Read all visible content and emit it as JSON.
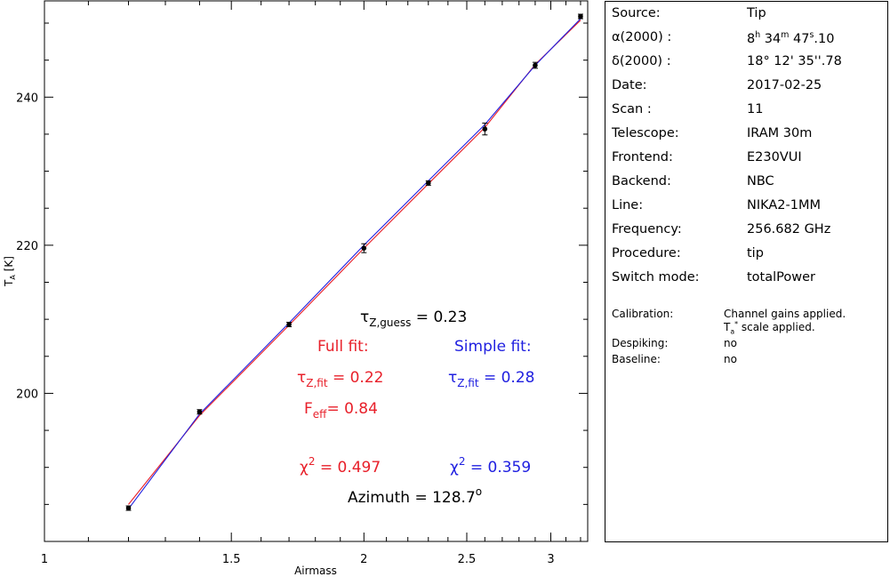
{
  "chart_data": {
    "type": "scatter",
    "xlabel": "Airmass",
    "ylabel": "T_A [K]",
    "x_scale": "log",
    "xlim": [
      1,
      3.25
    ],
    "ylim": [
      180,
      253
    ],
    "x_ticks": [
      1,
      1.5,
      2,
      2.5,
      3
    ],
    "y_ticks": [
      200,
      220,
      240
    ],
    "points": {
      "x": [
        1.2,
        1.4,
        1.7,
        2.0,
        2.3,
        2.6,
        2.9,
        3.2
      ],
      "y": [
        184.5,
        197.5,
        209.3,
        219.6,
        228.4,
        235.7,
        244.3,
        250.9
      ],
      "err": [
        0.3,
        0.3,
        0.3,
        0.6,
        0.3,
        0.8,
        0.4,
        0.3
      ]
    },
    "series": [
      {
        "name": "Full fit",
        "color": "#e8202a",
        "x": [
          1.2,
          1.4,
          1.7,
          2.0,
          2.3,
          2.6,
          2.9,
          3.2
        ],
        "y": [
          185.0,
          197.0,
          209.2,
          219.6,
          228.3,
          235.9,
          244.4,
          250.4
        ]
      },
      {
        "name": "Simple fit",
        "color": "#2020e0",
        "x": [
          1.2,
          1.4,
          1.7,
          2.0,
          2.3,
          2.6,
          2.9,
          3.2
        ],
        "y": [
          184.4,
          197.2,
          209.5,
          220.0,
          228.7,
          236.3,
          244.3,
          250.6
        ]
      }
    ]
  },
  "annotations": {
    "tau_guess_label": "τ",
    "tau_guess_sub": "Z,guess",
    "tau_guess_value": " = 0.23",
    "full_fit_title": "Full fit:",
    "full_tau_label": "τ",
    "full_tau_sub": "Z,fit",
    "full_tau_value": " = 0.22",
    "feff_label": "F",
    "feff_sub": "eff",
    "feff_value": "= 0.84",
    "full_chi_label": "χ",
    "full_chi_sup": "2",
    "full_chi_value": " = 0.497",
    "simple_fit_title": "Simple fit:",
    "simple_tau_label": "τ",
    "simple_tau_sub": "Z,fit",
    "simple_tau_value": " = 0.28",
    "simple_chi_label": "χ",
    "simple_chi_sup": "2",
    "simple_chi_value": " = 0.359",
    "azimuth_label": "Azimuth = 128.7",
    "azimuth_sup": "o",
    "red": "#e8202a",
    "blue": "#2020e0"
  },
  "info": {
    "source_k": "Source:",
    "source_v": "Tip",
    "ra_k": "α(2000) :",
    "ra_h": "8",
    "ra_h_unit": "h",
    "ra_m": " 34",
    "ra_m_unit": "m",
    "ra_s": " 47",
    "ra_s_unit": "s",
    "ra_frac": ".10",
    "dec_k": "δ(2000) :",
    "dec_v": "18° 12' 35''.78",
    "date_k": "Date:",
    "date_v": "2017-02-25",
    "scan_k": "Scan :",
    "scan_v": "11",
    "telescope_k": "Telescope:",
    "telescope_v": "IRAM 30m",
    "frontend_k": "Frontend:",
    "frontend_v": "E230VUI",
    "backend_k": "Backend:",
    "backend_v": "NBC",
    "line_k": "Line:",
    "line_v": "NIKA2-1MM",
    "freq_k": "Frequency:",
    "freq_v": "256.682 GHz",
    "proc_k": "Procedure:",
    "proc_v": "tip",
    "switch_k": "Switch mode:",
    "switch_v": "totalPower",
    "calib_k": "Calibration:",
    "calib_v1": "Channel gains applied.",
    "calib_v2_a": "T",
    "calib_v2_sub": "a",
    "calib_v2_sup": "*",
    "calib_v2_b": " scale applied.",
    "despike_k": "Despiking:",
    "despike_v": "no",
    "baseline_k": "Baseline:",
    "baseline_v": "no"
  }
}
